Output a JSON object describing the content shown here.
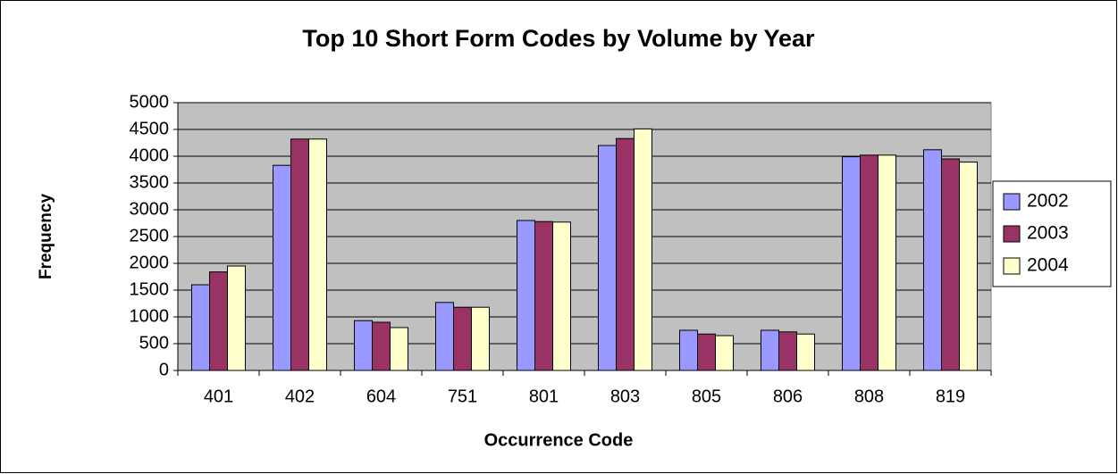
{
  "chart_data": {
    "type": "bar",
    "title": "Top 10 Short Form Codes by Volume by Year",
    "x_label": "Occurrence Code",
    "y_label": "Frequency",
    "categories": [
      "401",
      "402",
      "604",
      "751",
      "801",
      "803",
      "805",
      "806",
      "808",
      "819"
    ],
    "series": [
      {
        "name": "2002",
        "color": "#9999ff",
        "values": [
          1600,
          3830,
          930,
          1270,
          2800,
          4200,
          750,
          750,
          3990,
          4120
        ]
      },
      {
        "name": "2003",
        "color": "#993366",
        "values": [
          1840,
          4320,
          900,
          1180,
          2780,
          4330,
          680,
          720,
          4020,
          3950
        ]
      },
      {
        "name": "2004",
        "color": "#ffffcc",
        "values": [
          1950,
          4320,
          800,
          1180,
          2770,
          4510,
          650,
          680,
          4020,
          3890
        ]
      }
    ],
    "ylim": [
      0,
      5000
    ],
    "yticks": [
      0,
      500,
      1000,
      1500,
      2000,
      2500,
      3000,
      3500,
      4000,
      4500,
      5000
    ],
    "grid": true,
    "legend": "right"
  }
}
